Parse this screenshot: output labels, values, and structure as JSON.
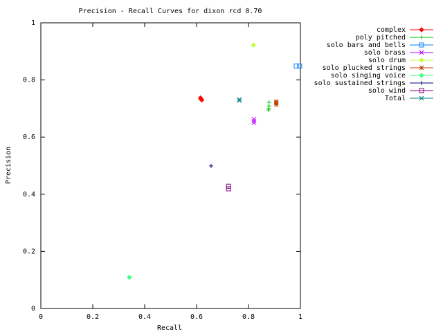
{
  "chart_data": {
    "type": "scatter",
    "title": "Precision - Recall Curves for dixon rcd 0.70",
    "x_label": "Recall",
    "y_label": "Precision",
    "xlim": [
      0,
      1
    ],
    "ylim": [
      0,
      1
    ],
    "xticks": [
      0,
      0.2,
      0.4,
      0.6,
      0.8,
      1
    ],
    "yticks": [
      0,
      0.2,
      0.4,
      0.6,
      0.8,
      1
    ],
    "legend": "outside-right-top",
    "series": [
      {
        "name": "complex",
        "color": "#ff0000",
        "marker": "diamond",
        "x": [
          0.615,
          0.617,
          0.62
        ],
        "values": [
          0.737,
          0.733,
          0.73
        ]
      },
      {
        "name": "poly pitched",
        "color": "#00c000",
        "marker": "plus",
        "x": [
          0.879,
          0.879,
          0.878,
          0.877
        ],
        "values": [
          0.722,
          0.709,
          0.7,
          0.695
        ]
      },
      {
        "name": "solo bars and bells",
        "color": "#0080ff",
        "marker": "square",
        "x": [
          0.984,
          0.997
        ],
        "values": [
          0.849,
          0.849
        ]
      },
      {
        "name": "solo brass",
        "color": "#c000ff",
        "marker": "cross",
        "x": [
          0.821,
          0.821,
          0.821
        ],
        "values": [
          0.663,
          0.656,
          0.65
        ]
      },
      {
        "name": "solo drum",
        "color": "#c0ff40",
        "marker": "diamond",
        "x": [
          0.819
        ],
        "values": [
          0.922
        ]
      },
      {
        "name": "solo plucked strings",
        "color": "#c04000",
        "marker": "star",
        "x": [
          0.907,
          0.907,
          0.907
        ],
        "values": [
          0.724,
          0.72,
          0.714
        ]
      },
      {
        "name": "solo singing voice",
        "color": "#40ff80",
        "marker": "diamond",
        "x": [
          0.341
        ],
        "values": [
          0.109
        ]
      },
      {
        "name": "solo sustained strings",
        "color": "#000080",
        "marker": "plus",
        "x": [
          0.656
        ],
        "values": [
          0.499
        ]
      },
      {
        "name": "solo wind",
        "color": "#800080",
        "marker": "square",
        "x": [
          0.723,
          0.723
        ],
        "values": [
          0.428,
          0.419
        ]
      },
      {
        "name": "Total",
        "color": "#008080",
        "marker": "cross",
        "x": [
          0.765,
          0.765
        ],
        "values": [
          0.732,
          0.728
        ]
      }
    ]
  }
}
